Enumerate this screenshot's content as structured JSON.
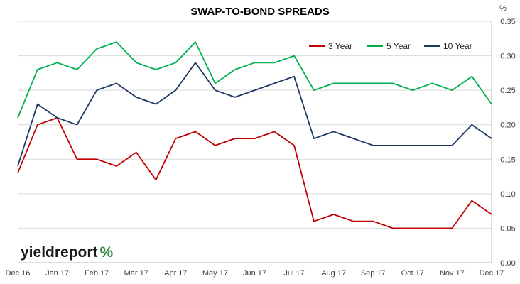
{
  "chart_data": {
    "type": "line",
    "title": "SWAP-TO-BOND SPREADS",
    "ylabel_unit": "%",
    "ylim": [
      0,
      0.35
    ],
    "y_ticks": [
      "0.00",
      "0.05",
      "0.10",
      "0.15",
      "0.20",
      "0.25",
      "0.30",
      "0.35"
    ],
    "x_ticks": [
      "Dec 16",
      "Jan 17",
      "Feb 17",
      "Mar 17",
      "Apr 17",
      "May 17",
      "Jun 17",
      "Jul 17",
      "Aug 17",
      "Sep 17",
      "Oct 17",
      "Nov 17",
      "Dec 17"
    ],
    "grid": "horizontal",
    "legend_position": "top-right",
    "x": [
      "Dec 16",
      "mid-Dec 16",
      "Jan 17",
      "mid-Jan 17",
      "Feb 17",
      "mid-Feb 17",
      "Mar 17",
      "mid-Mar 17",
      "Apr 17",
      "mid-Apr 17",
      "May 17",
      "mid-May 17",
      "Jun 17",
      "mid-Jun 17",
      "Jul 17",
      "mid-Jul 17",
      "Aug 17",
      "mid-Aug 17",
      "Sep 17",
      "mid-Sep 17",
      "Oct 17",
      "mid-Oct 17",
      "Nov 17",
      "mid-Nov 17",
      "Dec 17"
    ],
    "series": [
      {
        "name": "3 Year",
        "color": "#c00000",
        "values": [
          0.13,
          0.2,
          0.21,
          0.15,
          0.15,
          0.14,
          0.16,
          0.12,
          0.18,
          0.19,
          0.17,
          0.18,
          0.18,
          0.19,
          0.17,
          0.06,
          0.07,
          0.06,
          0.06,
          0.05,
          0.05,
          0.05,
          0.05,
          0.09,
          0.07
        ]
      },
      {
        "name": "5 Year",
        "color": "#00b050",
        "values": [
          0.21,
          0.28,
          0.29,
          0.28,
          0.31,
          0.32,
          0.29,
          0.28,
          0.29,
          0.32,
          0.26,
          0.28,
          0.29,
          0.29,
          0.3,
          0.25,
          0.26,
          0.26,
          0.26,
          0.26,
          0.25,
          0.26,
          0.25,
          0.27,
          0.23
        ]
      },
      {
        "name": "10 Year",
        "color": "#1f3864",
        "values": [
          0.14,
          0.23,
          0.21,
          0.2,
          0.25,
          0.26,
          0.24,
          0.23,
          0.25,
          0.29,
          0.25,
          0.24,
          0.25,
          0.26,
          0.27,
          0.18,
          0.19,
          0.18,
          0.17,
          0.17,
          0.17,
          0.17,
          0.17,
          0.2,
          0.18
        ]
      }
    ]
  },
  "logo": {
    "text_main": "yieldreport",
    "text_mark": "%"
  }
}
